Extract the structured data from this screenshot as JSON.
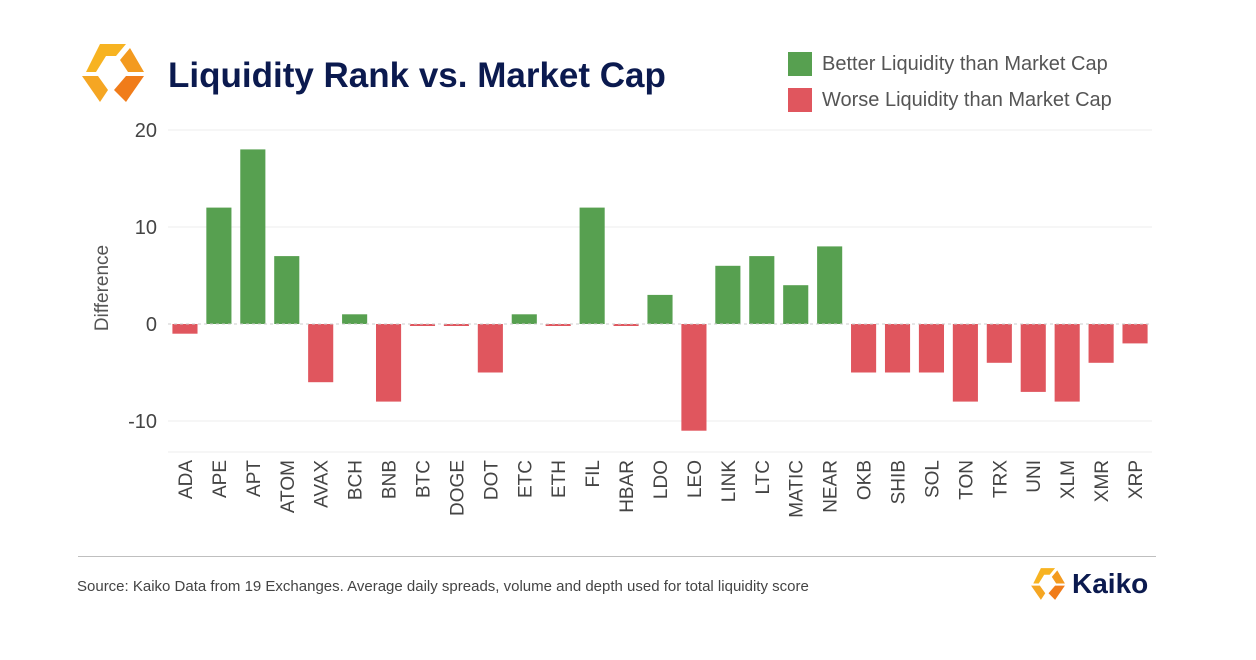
{
  "header": {
    "title": "Liquidity Rank vs. Market Cap"
  },
  "legend": {
    "better_label": "Better Liquidity than Market Cap",
    "worse_label": "Worse Liquidity than Market Cap",
    "better_color": "#57a050",
    "worse_color": "#e0565e"
  },
  "chart_data": {
    "type": "bar",
    "title": "Liquidity Rank vs. Market Cap",
    "xlabel": "",
    "ylabel": "Difference",
    "ylim": [
      -13,
      20
    ],
    "yticks": [
      -10,
      0,
      10,
      20
    ],
    "grid": true,
    "legend_position": "top-right",
    "categories": [
      "ADA",
      "APE",
      "APT",
      "ATOM",
      "AVAX",
      "BCH",
      "BNB",
      "BTC",
      "DOGE",
      "DOT",
      "ETC",
      "ETH",
      "FIL",
      "HBAR",
      "LDO",
      "LEO",
      "LINK",
      "LTC",
      "MATIC",
      "NEAR",
      "OKB",
      "SHIB",
      "SOL",
      "TON",
      "TRX",
      "UNI",
      "XLM",
      "XMR",
      "XRP"
    ],
    "values": [
      -1,
      12,
      18,
      7,
      -6,
      1,
      -8,
      -0.2,
      -0.2,
      -5,
      1,
      -0.2,
      12,
      -0.2,
      3,
      -11,
      6,
      7,
      4,
      8,
      -5,
      -5,
      -5,
      -8,
      -4,
      -7,
      -8,
      -4,
      -2
    ]
  },
  "footer": {
    "source": "Source: Kaiko Data from 19 Exchanges. Average daily spreads, volume and depth used for total liquidity score",
    "brand": "Kaiko"
  },
  "colors": {
    "title": "#0b1a4f",
    "logo_orange": "#f5a623",
    "logo_orange_dark": "#f07c1a"
  }
}
